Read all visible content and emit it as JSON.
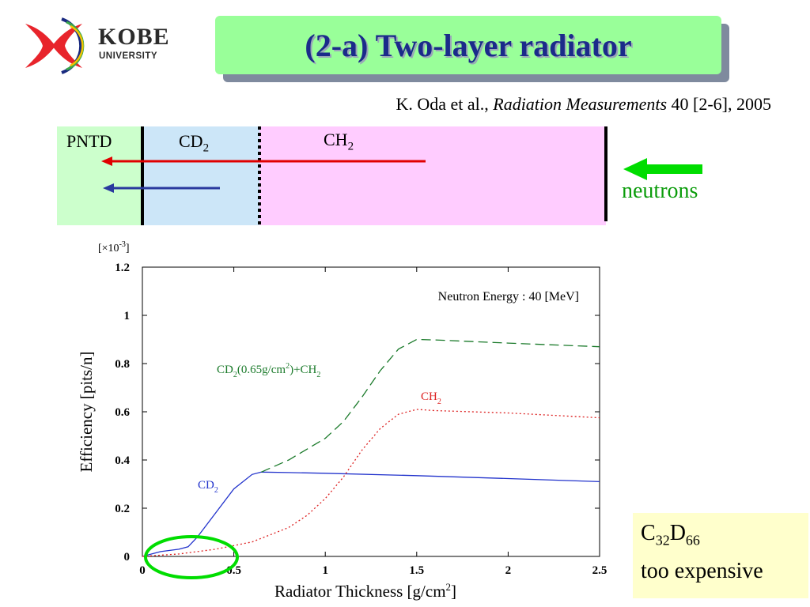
{
  "logo": {
    "wordmark": "KOBE",
    "subword": "UNIVERSITY"
  },
  "title": "(2-a) Two-layer radiator",
  "citation": {
    "authors": "K. Oda et al.,",
    "journal": "Radiation Measurements",
    "volume": "40 [2-6], 2005"
  },
  "diagram": {
    "pntd_label": "PNTD",
    "cd2_label": "CD",
    "cd2_sub": "2",
    "ch2_label": "CH",
    "ch2_sub": "2",
    "neutrons_label": "neutrons",
    "colors": {
      "pntd_bg": "#ccffcc",
      "cd2_bg": "#cce6f8",
      "ch2_bg": "#ffccff",
      "red_arrow": "#e00000",
      "blue_arrow": "#2a3a9e",
      "neutron_arrow": "#00dd00"
    }
  },
  "chart_data": {
    "type": "line",
    "xlabel": "Radiator Thickness [g/cm",
    "xlabel_sup": "2",
    "xlabel_end": "]",
    "ylabel": "Efficiency [pits/n]",
    "y_multiplier": "[×10",
    "y_multiplier_sup": "-3",
    "y_multiplier_end": "]",
    "xlim": [
      0,
      2.5
    ],
    "ylim": [
      0,
      1.2
    ],
    "x_ticks": [
      "0",
      "0.5",
      "1",
      "1.5",
      "2",
      "2.5"
    ],
    "x_tick_values": [
      0,
      0.5,
      1,
      1.5,
      2,
      2.5
    ],
    "y_ticks": [
      "0",
      "0.2",
      "0.4",
      "0.6",
      "0.8",
      "1",
      "1.2"
    ],
    "y_tick_values": [
      0,
      0.2,
      0.4,
      0.6,
      0.8,
      1.0,
      1.2
    ],
    "annotation": "Neutron Energy : 40 [MeV]",
    "grid": false,
    "series": [
      {
        "name": "CD2",
        "label": "CD",
        "label_sub": "2",
        "label_rest": "",
        "color": "#2233cc",
        "dash": "solid",
        "x": [
          0.0,
          0.1,
          0.2,
          0.25,
          0.3,
          0.4,
          0.5,
          0.6,
          0.65,
          0.8,
          1.0,
          1.5,
          2.0,
          2.5
        ],
        "y": [
          0.0,
          0.02,
          0.03,
          0.04,
          0.08,
          0.18,
          0.28,
          0.34,
          0.35,
          0.348,
          0.345,
          0.335,
          0.323,
          0.31
        ]
      },
      {
        "name": "CD2(0.65g/cm2)+CH2",
        "label": "CD",
        "label_sub": "2",
        "label_rest": "(0.65g/cm",
        "label_sup": "2",
        "label_rest2": ")+CH",
        "label_sub2": "2",
        "color": "#1a7a2a",
        "dash": "dashed",
        "x": [
          0.65,
          0.8,
          1.0,
          1.1,
          1.2,
          1.3,
          1.4,
          1.5,
          1.6,
          2.0,
          2.5
        ],
        "y": [
          0.35,
          0.4,
          0.49,
          0.56,
          0.66,
          0.77,
          0.86,
          0.9,
          0.898,
          0.885,
          0.87
        ]
      },
      {
        "name": "CH2",
        "label": "CH",
        "label_sub": "2",
        "label_rest": "",
        "color": "#dd2222",
        "dash": "dotted",
        "x": [
          0.0,
          0.2,
          0.4,
          0.6,
          0.8,
          0.9,
          1.0,
          1.1,
          1.2,
          1.3,
          1.4,
          1.5,
          1.6,
          2.0,
          2.5
        ],
        "y": [
          0.0,
          0.01,
          0.03,
          0.06,
          0.12,
          0.17,
          0.24,
          0.33,
          0.44,
          0.53,
          0.59,
          0.61,
          0.605,
          0.595,
          0.575
        ]
      }
    ]
  },
  "note": {
    "line1_c": "C",
    "line1_c_sub": "32",
    "line1_d": "D",
    "line1_d_sub": "66",
    "line2": "too expensive"
  },
  "highlight_color": "#00dd00"
}
